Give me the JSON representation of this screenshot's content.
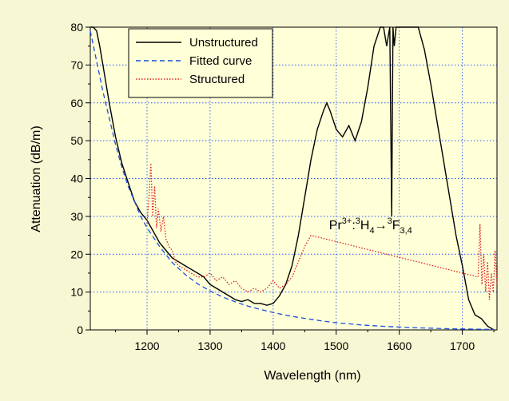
{
  "chart_data": {
    "type": "line",
    "xlabel": "Wavelength (nm)",
    "ylabel": "Attenuation (dB/m)",
    "xlim": [
      1110,
      1755
    ],
    "ylim": [
      0,
      80
    ],
    "x_ticks": [
      1200,
      1300,
      1400,
      1500,
      1600,
      1700
    ],
    "y_ticks": [
      0,
      10,
      20,
      30,
      40,
      50,
      60,
      70,
      80
    ],
    "grid": true,
    "legend_position": "top-left",
    "annotation": {
      "text": "Pr3+:3H4→3F3,4",
      "base": "Pr",
      "sup1": "3+",
      "mid1": ":",
      "sup2": "3",
      "mid2": "H",
      "sub1": "4",
      "arrow": "→",
      "sup3": "3",
      "mid3": "F",
      "sub2": "3,4",
      "x": 1590,
      "y": 27
    },
    "series": [
      {
        "name": "Unstructured",
        "color": "#000000",
        "style": "solid",
        "x": [
          1110,
          1115,
          1120,
          1125,
          1130,
          1140,
          1150,
          1160,
          1170,
          1180,
          1190,
          1200,
          1210,
          1220,
          1230,
          1240,
          1250,
          1260,
          1270,
          1280,
          1290,
          1300,
          1310,
          1320,
          1330,
          1340,
          1350,
          1360,
          1370,
          1380,
          1390,
          1400,
          1410,
          1420,
          1430,
          1440,
          1450,
          1460,
          1470,
          1480,
          1485,
          1490,
          1500,
          1510,
          1520,
          1530,
          1540,
          1550,
          1560,
          1570,
          1575,
          1580,
          1585,
          1588,
          1590,
          1592,
          1595,
          1600,
          1605,
          1610,
          1620,
          1630,
          1640,
          1650,
          1660,
          1670,
          1680,
          1690,
          1700,
          1710,
          1720,
          1730,
          1740,
          1750
        ],
        "y": [
          82,
          82,
          79,
          75,
          70,
          60,
          51,
          44,
          39,
          34,
          31,
          29,
          26,
          23,
          21,
          19,
          18,
          17,
          16,
          15,
          14,
          12,
          11,
          10,
          9,
          8,
          7.5,
          8,
          7,
          7,
          6.5,
          7,
          9,
          12,
          17,
          25,
          35,
          45,
          53,
          58,
          60,
          58,
          53,
          51,
          54,
          50,
          55,
          64,
          75,
          82,
          88,
          75,
          84,
          30,
          80,
          75,
          88,
          82,
          86,
          90,
          80,
          86,
          74,
          65,
          55,
          45,
          35,
          25,
          17,
          8,
          4,
          3,
          1,
          0
        ]
      },
      {
        "name": "Fitted curve",
        "color": "#1a4fe0",
        "style": "dashed",
        "x": [
          1110,
          1120,
          1130,
          1140,
          1150,
          1160,
          1170,
          1180,
          1190,
          1200,
          1220,
          1240,
          1260,
          1280,
          1300,
          1320,
          1340,
          1360,
          1380,
          1400,
          1420,
          1440,
          1460,
          1480,
          1500,
          1520,
          1540,
          1560,
          1580,
          1600,
          1620,
          1640,
          1660,
          1680,
          1700,
          1720,
          1740,
          1750
        ],
        "y": [
          79,
          71,
          63,
          56,
          49,
          43,
          38,
          34,
          30,
          27,
          22,
          17.8,
          14.7,
          12.2,
          10.3,
          8.7,
          7.4,
          6.3,
          5.4,
          4.6,
          3.9,
          3.3,
          2.8,
          2.3,
          1.9,
          1.6,
          1.3,
          1.1,
          0.9,
          0.75,
          0.6,
          0.5,
          0.4,
          0.3,
          0.25,
          0.2,
          0.15,
          0.1
        ]
      },
      {
        "name": "Structured",
        "color": "#e02020",
        "style": "dotted",
        "x": [
          1200,
          1203,
          1206,
          1209,
          1212,
          1215,
          1218,
          1222,
          1226,
          1230,
          1235,
          1240,
          1245,
          1250,
          1260,
          1270,
          1280,
          1290,
          1300,
          1310,
          1320,
          1330,
          1340,
          1350,
          1360,
          1370,
          1380,
          1390,
          1400,
          1410,
          1420,
          1430,
          1440,
          1450,
          1460,
          1725,
          1728,
          1731,
          1734,
          1737,
          1740,
          1743,
          1746,
          1749,
          1752,
          1755
        ],
        "y": [
          28,
          35,
          44,
          30,
          38,
          27,
          32,
          26,
          30,
          24,
          22,
          21,
          18,
          17,
          16,
          15,
          14,
          14,
          15,
          13,
          14,
          12,
          13,
          11,
          10,
          11,
          10,
          11,
          13,
          11,
          12,
          14,
          18,
          22,
          25,
          14,
          28,
          12,
          20,
          10,
          18,
          8,
          15,
          10,
          21,
          12
        ]
      }
    ]
  }
}
